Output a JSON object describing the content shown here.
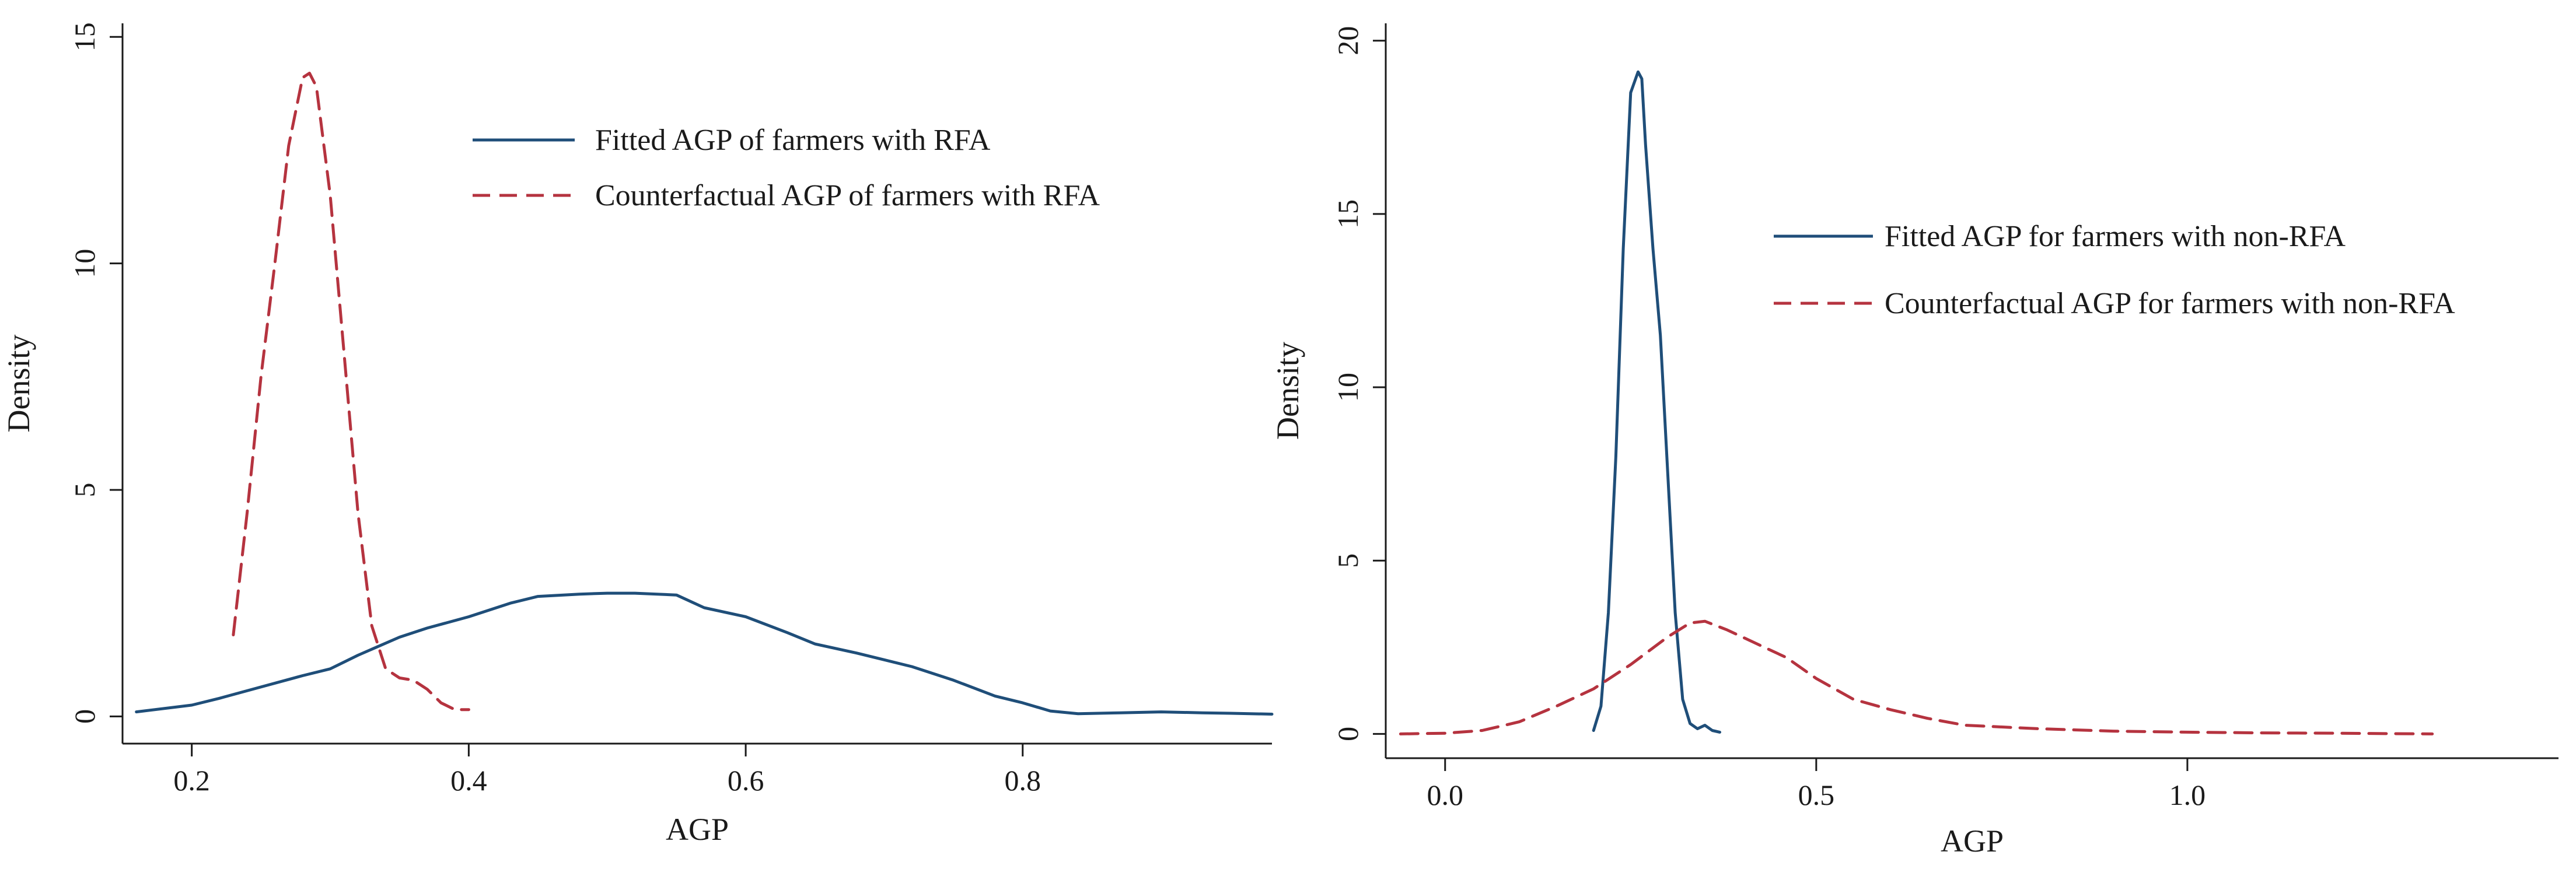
{
  "chart_data": [
    {
      "type": "line",
      "title": "",
      "xlabel": "AGP",
      "ylabel": "Density",
      "xlim": [
        0.15,
        0.98
      ],
      "ylim": [
        -0.6,
        15.3
      ],
      "xticks": [
        0.2,
        0.4,
        0.6,
        0.8
      ],
      "xtick_labels": [
        "0.2",
        "0.4",
        "0.6",
        "0.8"
      ],
      "yticks": [
        0,
        5,
        10,
        15
      ],
      "ytick_labels": [
        "0",
        "5",
        "10",
        "15"
      ],
      "grid": false,
      "legend_position": "top-right",
      "series": [
        {
          "name": "Fitted AGP of farmers with RFA",
          "color": "#1f4e79",
          "style": "solid",
          "x": [
            0.16,
            0.2,
            0.22,
            0.25,
            0.28,
            0.3,
            0.32,
            0.35,
            0.37,
            0.4,
            0.43,
            0.45,
            0.48,
            0.5,
            0.52,
            0.55,
            0.57,
            0.6,
            0.63,
            0.65,
            0.68,
            0.7,
            0.72,
            0.75,
            0.78,
            0.8,
            0.82,
            0.84,
            0.87,
            0.9,
            0.93,
            0.95,
            0.98
          ],
          "y": [
            0.1,
            0.25,
            0.4,
            0.65,
            0.9,
            1.05,
            1.35,
            1.75,
            1.95,
            2.2,
            2.5,
            2.65,
            2.7,
            2.72,
            2.72,
            2.68,
            2.4,
            2.2,
            1.85,
            1.6,
            1.4,
            1.25,
            1.1,
            0.8,
            0.45,
            0.3,
            0.12,
            0.06,
            0.08,
            0.1,
            0.08,
            0.07,
            0.05
          ]
        },
        {
          "name": "Counterfactual AGP of farmers with RFA",
          "color": "#b5333f",
          "style": "dashed",
          "x": [
            0.23,
            0.24,
            0.25,
            0.26,
            0.27,
            0.28,
            0.285,
            0.29,
            0.3,
            0.31,
            0.32,
            0.33,
            0.34,
            0.35,
            0.36,
            0.37,
            0.38,
            0.39,
            0.4
          ],
          "y": [
            1.8,
            4.5,
            7.5,
            10.0,
            12.6,
            14.1,
            14.2,
            13.9,
            11.5,
            8.0,
            4.5,
            2.0,
            1.05,
            0.85,
            0.8,
            0.6,
            0.3,
            0.15,
            0.15
          ]
        }
      ]
    },
    {
      "type": "line",
      "title": "",
      "xlabel": "AGP",
      "ylabel": "Density",
      "xlim": [
        -0.08,
        1.5
      ],
      "ylim": [
        -0.7,
        20.5
      ],
      "xticks": [
        0.0,
        0.5,
        1.0
      ],
      "xtick_labels": [
        "0.0",
        "0.5",
        "1.0"
      ],
      "yticks": [
        0,
        5,
        10,
        15,
        20
      ],
      "ytick_labels": [
        "0",
        "5",
        "10",
        "15",
        "20"
      ],
      "grid": false,
      "legend_position": "top-right",
      "series": [
        {
          "name": "Fitted AGP for farmers with non-RFA",
          "color": "#1f4e79",
          "style": "solid",
          "x": [
            0.2,
            0.21,
            0.22,
            0.23,
            0.24,
            0.25,
            0.26,
            0.265,
            0.27,
            0.28,
            0.29,
            0.3,
            0.31,
            0.32,
            0.33,
            0.34,
            0.35,
            0.36,
            0.37
          ],
          "y": [
            0.1,
            0.8,
            3.5,
            8.0,
            14.0,
            18.5,
            19.1,
            18.9,
            17.0,
            14.0,
            11.5,
            7.5,
            3.5,
            1.0,
            0.3,
            0.15,
            0.25,
            0.1,
            0.05
          ]
        },
        {
          "name": "Counterfactual AGP for farmers with non-RFA",
          "color": "#b5333f",
          "style": "dashed",
          "x": [
            -0.06,
            0.0,
            0.05,
            0.1,
            0.15,
            0.2,
            0.25,
            0.3,
            0.33,
            0.35,
            0.38,
            0.42,
            0.46,
            0.5,
            0.55,
            0.6,
            0.65,
            0.7,
            0.8,
            0.9,
            1.0,
            1.1,
            1.2,
            1.33
          ],
          "y": [
            0.0,
            0.02,
            0.1,
            0.35,
            0.8,
            1.3,
            2.0,
            2.8,
            3.2,
            3.25,
            3.0,
            2.6,
            2.2,
            1.6,
            1.0,
            0.7,
            0.45,
            0.25,
            0.15,
            0.08,
            0.05,
            0.03,
            0.02,
            0.0
          ]
        }
      ]
    }
  ]
}
